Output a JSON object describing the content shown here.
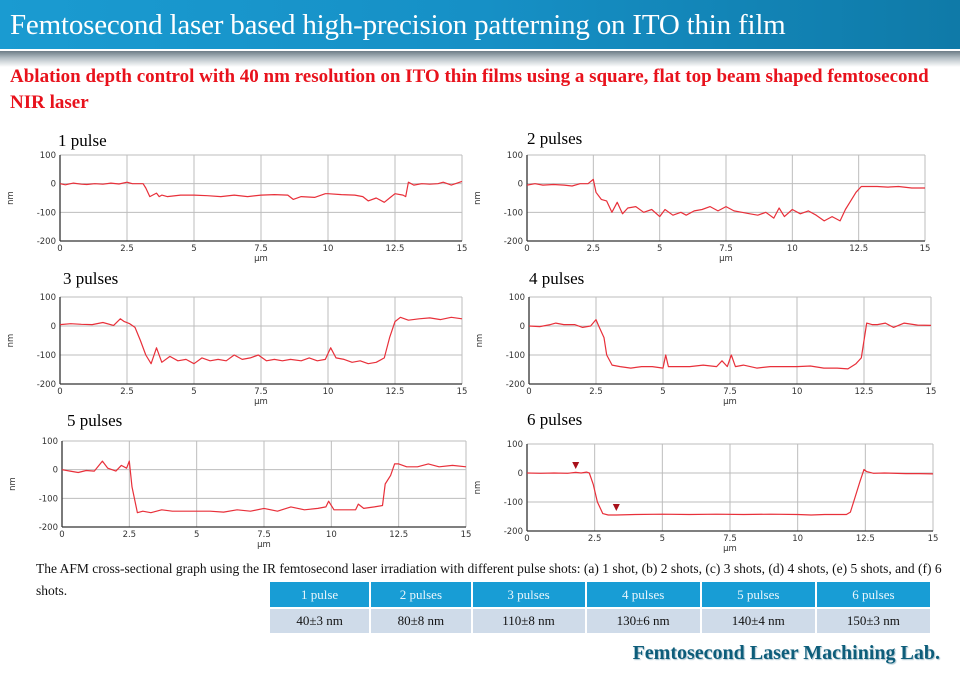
{
  "header": {
    "title": "Femtosecond laser based high-precision patterning on ITO thin film",
    "subtitle": "Ablation depth control with 40 nm resolution on ITO thin films using a square, flat top beam shaped femtosecond NIR laser"
  },
  "colors": {
    "title_bar": "#1690c6",
    "subtitle": "#e8121c",
    "trace": "#e8303a",
    "marker": "#a8101a",
    "table_header": "#189dd5",
    "table_cell": "#cfdbe9",
    "footer": "#0d5d7a"
  },
  "chart_data": [
    {
      "type": "line",
      "title": "1 pulse",
      "xlabel": "µm",
      "ylabel": "nm",
      "xlim": [
        0,
        15
      ],
      "ylim": [
        -200,
        100
      ],
      "grid": true,
      "xticks": [
        "0",
        "2.5",
        "5",
        "7.5",
        "10",
        "12.5",
        "15"
      ],
      "yticks": [
        "100",
        "0",
        "-100",
        "-200"
      ],
      "series": [
        {
          "name": "1 pulse profile",
          "x": [
            0,
            0.2,
            0.5,
            0.8,
            1.0,
            1.3,
            1.6,
            1.9,
            2.2,
            2.5,
            2.7,
            3.0,
            3.1,
            3.2,
            3.35,
            3.6,
            3.7,
            3.8,
            4.0,
            4.5,
            5.0,
            5.5,
            6.0,
            6.5,
            7.0,
            7.5,
            8.0,
            8.5,
            8.7,
            9.0,
            9.5,
            9.9,
            10.0,
            10.5,
            11.0,
            11.3,
            11.5,
            11.8,
            12.1,
            12.3,
            12.5,
            12.8,
            12.9,
            13.0,
            13.2,
            13.5,
            13.8,
            14.1,
            14.3,
            14.6,
            15.0
          ],
          "y": [
            0,
            -4,
            2,
            -2,
            -3,
            0,
            -2,
            2,
            -1,
            5,
            0,
            0,
            0,
            -15,
            -45,
            -33,
            -45,
            -40,
            -45,
            -40,
            -40,
            -42,
            -45,
            -40,
            -45,
            -40,
            -38,
            -40,
            -55,
            -45,
            -48,
            -35,
            -35,
            -38,
            -40,
            -45,
            -60,
            -50,
            -65,
            -50,
            -35,
            -40,
            -45,
            5,
            -5,
            0,
            -2,
            0,
            5,
            -5,
            8
          ]
        }
      ]
    },
    {
      "type": "line",
      "title": "2 pulses",
      "xlabel": "µm",
      "ylabel": "nm",
      "xlim": [
        0,
        15
      ],
      "ylim": [
        -200,
        100
      ],
      "grid": true,
      "xticks": [
        "0",
        "2.5",
        "5",
        "7.5",
        "10",
        "12.5",
        "15"
      ],
      "yticks": [
        "100",
        "0",
        "-100",
        "-200"
      ],
      "series": [
        {
          "name": "2 pulses profile",
          "x": [
            0,
            0.3,
            0.6,
            1.0,
            1.4,
            1.7,
            2.0,
            2.3,
            2.5,
            2.6,
            2.8,
            3.0,
            3.2,
            3.4,
            3.6,
            3.8,
            4.1,
            4.4,
            4.7,
            5.0,
            5.2,
            5.5,
            5.8,
            6.0,
            6.3,
            6.6,
            6.9,
            7.2,
            7.5,
            7.8,
            8.1,
            8.4,
            8.7,
            9.0,
            9.3,
            9.5,
            9.7,
            10.0,
            10.3,
            10.6,
            10.9,
            11.2,
            11.5,
            11.8,
            12.0,
            12.2,
            12.4,
            12.6,
            12.8,
            13.2,
            13.6,
            14.0,
            14.5,
            15.0
          ],
          "y": [
            -5,
            0,
            -5,
            -3,
            -5,
            -8,
            0,
            0,
            15,
            -30,
            -55,
            -60,
            -100,
            -65,
            -105,
            -85,
            -80,
            -100,
            -90,
            -115,
            -90,
            -110,
            -100,
            -110,
            -95,
            -90,
            -80,
            -95,
            -80,
            -95,
            -100,
            -105,
            -110,
            -100,
            -120,
            -85,
            -115,
            -90,
            -105,
            -95,
            -110,
            -130,
            -115,
            -130,
            -90,
            -60,
            -30,
            -10,
            -10,
            -10,
            -12,
            -10,
            -15,
            -15
          ]
        }
      ]
    },
    {
      "type": "line",
      "title": "3 pulses",
      "xlabel": "µm",
      "ylabel": "nm",
      "xlim": [
        0,
        15
      ],
      "ylim": [
        -200,
        100
      ],
      "grid": true,
      "xticks": [
        "0",
        "2.5",
        "5",
        "7.5",
        "10",
        "12.5",
        "15"
      ],
      "yticks": [
        "100",
        "0",
        "-100",
        "-200"
      ],
      "series": [
        {
          "name": "3 pulses profile",
          "x": [
            0,
            0.4,
            0.8,
            1.2,
            1.6,
            2.0,
            2.25,
            2.4,
            2.6,
            2.8,
            3.0,
            3.2,
            3.4,
            3.6,
            3.8,
            4.1,
            4.4,
            4.7,
            5.0,
            5.3,
            5.6,
            5.9,
            6.2,
            6.5,
            6.8,
            7.1,
            7.4,
            7.7,
            8.0,
            8.3,
            8.6,
            9.0,
            9.3,
            9.6,
            9.9,
            10.1,
            10.3,
            10.6,
            10.9,
            11.2,
            11.5,
            11.8,
            12.1,
            12.3,
            12.5,
            12.7,
            13.0,
            13.4,
            13.8,
            14.2,
            14.6,
            15.0
          ],
          "y": [
            5,
            8,
            6,
            5,
            12,
            2,
            25,
            15,
            8,
            -5,
            -50,
            -100,
            -130,
            -75,
            -125,
            -105,
            -120,
            -115,
            -130,
            -110,
            -120,
            -115,
            -120,
            -100,
            -115,
            -110,
            -100,
            -120,
            -115,
            -120,
            -115,
            -120,
            -110,
            -120,
            -115,
            -75,
            -110,
            -115,
            -125,
            -120,
            -130,
            -125,
            -110,
            -40,
            15,
            30,
            20,
            25,
            28,
            22,
            30,
            25
          ]
        }
      ]
    },
    {
      "type": "line",
      "title": "4 pulses",
      "xlabel": "µm",
      "ylabel": "nm",
      "xlim": [
        0,
        15
      ],
      "ylim": [
        -200,
        100
      ],
      "grid": true,
      "xticks": [
        "0",
        "2.5",
        "5",
        "7.5",
        "10",
        "12.5",
        "15"
      ],
      "yticks": [
        "100",
        "0",
        "-100",
        "-200"
      ],
      "series": [
        {
          "name": "4 pulses profile",
          "x": [
            0,
            0.4,
            0.8,
            1.0,
            1.3,
            1.7,
            2.0,
            2.3,
            2.5,
            2.6,
            2.8,
            2.9,
            3.1,
            3.4,
            3.8,
            4.2,
            4.6,
            5.0,
            5.1,
            5.2,
            5.6,
            6.0,
            6.5,
            7.0,
            7.2,
            7.4,
            7.55,
            7.7,
            8.0,
            8.5,
            9.0,
            9.5,
            10.0,
            10.5,
            11.0,
            11.5,
            11.9,
            12.2,
            12.4,
            12.6,
            12.8,
            13.0,
            13.3,
            13.6,
            14.0,
            14.5,
            15.0
          ],
          "y": [
            0,
            -2,
            5,
            10,
            5,
            5,
            -5,
            0,
            22,
            0,
            -40,
            -100,
            -135,
            -140,
            -145,
            -140,
            -140,
            -145,
            -100,
            -140,
            -140,
            -140,
            -135,
            -140,
            -120,
            -140,
            -100,
            -140,
            -135,
            -145,
            -140,
            -140,
            -140,
            -138,
            -145,
            -145,
            -148,
            -130,
            -110,
            10,
            5,
            5,
            10,
            -5,
            10,
            3,
            2
          ]
        }
      ]
    },
    {
      "type": "line",
      "title": "5 pulses",
      "xlabel": "µm",
      "ylabel": "nm",
      "xlim": [
        0,
        15
      ],
      "ylim": [
        -200,
        100
      ],
      "grid": true,
      "xticks": [
        "0",
        "2.5",
        "5",
        "7.5",
        "10",
        "12.5",
        "15"
      ],
      "yticks": [
        "100",
        "0",
        "-100",
        "-200"
      ],
      "series": [
        {
          "name": "5 pulses profile",
          "x": [
            0,
            0.3,
            0.6,
            0.9,
            1.2,
            1.5,
            1.7,
            2.0,
            2.2,
            2.4,
            2.5,
            2.6,
            2.8,
            3.0,
            3.3,
            3.7,
            4.1,
            4.5,
            5.0,
            5.5,
            6.0,
            6.5,
            7.0,
            7.5,
            8.0,
            8.5,
            9.0,
            9.5,
            9.8,
            9.9,
            10.1,
            10.5,
            10.9,
            11.0,
            11.2,
            11.6,
            11.9,
            12.0,
            12.2,
            12.35,
            12.5,
            12.8,
            13.2,
            13.6,
            14.0,
            14.5,
            15.0
          ],
          "y": [
            0,
            -5,
            -10,
            -3,
            -5,
            30,
            5,
            -5,
            15,
            5,
            30,
            -60,
            -150,
            -145,
            -150,
            -140,
            -145,
            -145,
            -145,
            -145,
            -148,
            -140,
            -145,
            -135,
            -145,
            -130,
            -140,
            -135,
            -130,
            -110,
            -140,
            -140,
            -140,
            -120,
            -135,
            -130,
            -125,
            -50,
            -20,
            20,
            20,
            10,
            10,
            20,
            10,
            15,
            10
          ]
        }
      ]
    },
    {
      "type": "line",
      "title": "6 pulses",
      "xlabel": "µm",
      "ylabel": "nm",
      "xlim": [
        0,
        15
      ],
      "ylim": [
        -200,
        100
      ],
      "grid": true,
      "xticks": [
        "0",
        "2.5",
        "5",
        "7.5",
        "10",
        "12.5",
        "15"
      ],
      "yticks": [
        "100",
        "0",
        "-100",
        "-200"
      ],
      "markers": [
        {
          "x": 1.8,
          "y": 0
        },
        {
          "x": 3.3,
          "y": -145
        }
      ],
      "series": [
        {
          "name": "6 pulses profile",
          "x": [
            0,
            0.5,
            1.0,
            1.5,
            1.8,
            2.0,
            2.2,
            2.3,
            2.45,
            2.6,
            2.8,
            3.0,
            3.3,
            4.0,
            5.0,
            6.0,
            7.0,
            8.0,
            9.0,
            10.0,
            10.5,
            11.0,
            11.8,
            11.95,
            12.1,
            12.3,
            12.45,
            12.55,
            12.8,
            13.2,
            14.0,
            14.5,
            15.0
          ],
          "y": [
            0,
            -1,
            0,
            -1,
            2,
            0,
            3,
            0,
            -40,
            -100,
            -140,
            -145,
            -145,
            -143,
            -142,
            -143,
            -142,
            -143,
            -142,
            -143,
            -145,
            -143,
            -143,
            -135,
            -90,
            -30,
            12,
            5,
            -1,
            0,
            -2,
            -2,
            -3
          ]
        }
      ]
    }
  ],
  "caption": "The AFM cross-sectional graph using the IR femtosecond laser irradiation with different pulse shots: (a) 1 shot, (b) 2 shots, (c) 3 shots, (d) 4 shots, (e) 5 shots, and (f) 6 shots.",
  "table": {
    "headers": [
      "1 pulse",
      "2 pulses",
      "3 pulses",
      "4 pulses",
      "5 pulses",
      "6 pulses"
    ],
    "values": [
      "40±3 nm",
      "80±8 nm",
      "110±8 nm",
      "130±6 nm",
      "140±4 nm",
      "150±3 nm"
    ]
  },
  "footer": "Femtosecond Laser Machining Lab."
}
